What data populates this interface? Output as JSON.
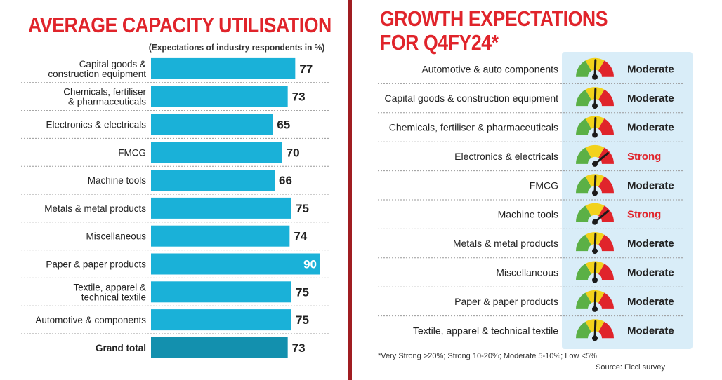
{
  "left_panel": {
    "title": "AVERAGE CAPACITY UTILISATION",
    "subtitle": "(Expectations of industry respondents in %)"
  },
  "right_panel": {
    "title_line1": "GROWTH EXPECTATIONS",
    "title_line2": "FOR Q4FY24*",
    "footnote": "*Very Strong >20%; Strong 10-20%; Moderate 5-10%; Low <5%",
    "source": "Source: Ficci survey"
  },
  "colors": {
    "bar": "#1ab1d8",
    "bar_total": "#1390ae",
    "title_red": "#e0242b",
    "strong_red": "#e0242b",
    "gauge_green": "#5bb046",
    "gauge_yellow": "#f2d21b",
    "gauge_red": "#e0242b"
  },
  "chart_data": [
    {
      "type": "bar",
      "orientation": "horizontal",
      "title": "AVERAGE CAPACITY UTILISATION",
      "subtitle": "(Expectations of industry respondents in %)",
      "categories": [
        [
          "Capital goods &",
          "construction equipment"
        ],
        [
          "Chemicals, fertiliser",
          "& pharmaceuticals"
        ],
        [
          "Electronics & electricals"
        ],
        [
          "FMCG"
        ],
        [
          "Machine tools"
        ],
        [
          "Metals & metal products"
        ],
        [
          "Miscellaneous"
        ],
        [
          "Paper & paper products"
        ],
        [
          "Textile, apparel &",
          "technical textile"
        ],
        [
          "Automotive & components"
        ],
        [
          "Grand total"
        ]
      ],
      "values": [
        77,
        73,
        65,
        70,
        66,
        75,
        74,
        90,
        75,
        75,
        73
      ],
      "highlight_index": 7,
      "total_index": 10,
      "xlim": [
        0,
        90
      ],
      "unit": "%"
    },
    {
      "type": "table",
      "title": "GROWTH EXPECTATIONS FOR Q4FY24*",
      "rows": [
        {
          "sector": "Automotive & auto components",
          "expectation": "Moderate"
        },
        {
          "sector": "Capital goods & construction equipment",
          "expectation": "Moderate"
        },
        {
          "sector": "Chemicals, fertiliser & pharmaceuticals",
          "expectation": "Moderate"
        },
        {
          "sector": "Electronics & electricals",
          "expectation": "Strong"
        },
        {
          "sector": "FMCG",
          "expectation": "Moderate"
        },
        {
          "sector": "Machine tools",
          "expectation": "Strong"
        },
        {
          "sector": "Metals & metal products",
          "expectation": "Moderate"
        },
        {
          "sector": "Miscellaneous",
          "expectation": "Moderate"
        },
        {
          "sector": "Paper & paper products",
          "expectation": "Moderate"
        },
        {
          "sector": "Textile, apparel & technical textile",
          "expectation": "Moderate"
        }
      ]
    }
  ]
}
